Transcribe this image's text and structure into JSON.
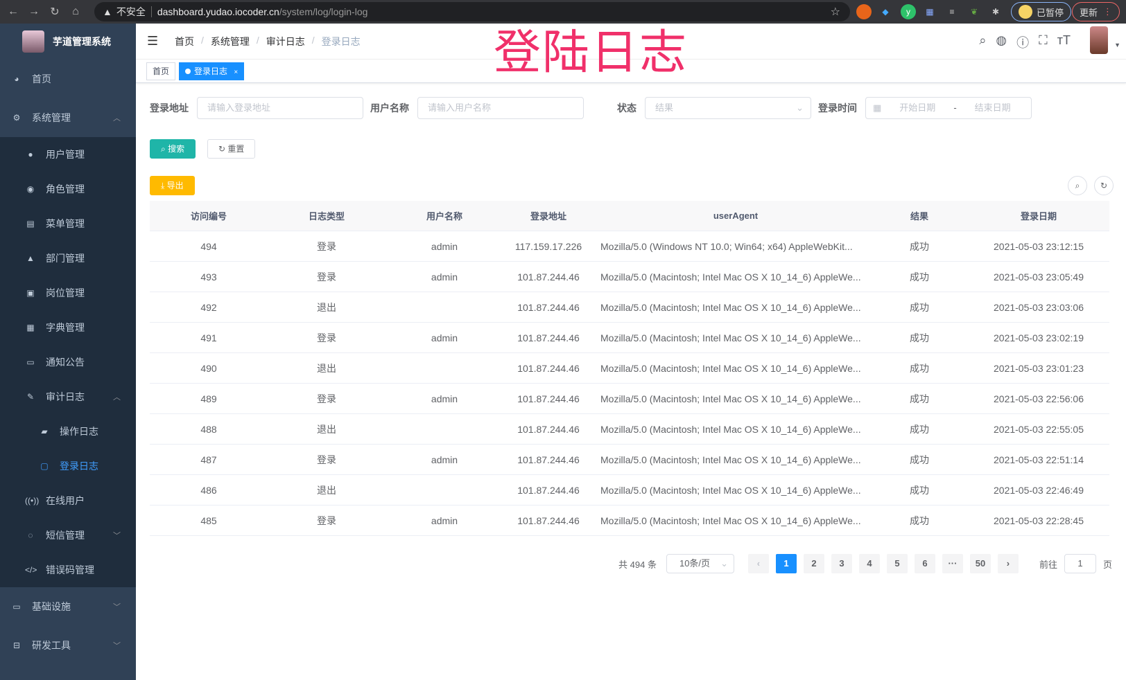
{
  "browser": {
    "warning": "不安全",
    "host": "dashboard.yudao.iocoder.cn",
    "path": "/system/log/login-log",
    "profile": "已暂停",
    "update": "更新"
  },
  "app": {
    "title": "芋道管理系统",
    "watermark": "登陆日志"
  },
  "breadcrumb": [
    "首页",
    "系统管理",
    "审计日志",
    "登录日志"
  ],
  "tabs": [
    {
      "label": "首页"
    },
    {
      "label": "登录日志",
      "close": "×"
    }
  ],
  "sidebar": {
    "home": "首页",
    "system": "系统管理",
    "system_items": [
      "用户管理",
      "角色管理",
      "菜单管理",
      "部门管理",
      "岗位管理",
      "字典管理",
      "通知公告"
    ],
    "audit": "审计日志",
    "audit_items": [
      "操作日志",
      "登录日志"
    ],
    "online": "在线用户",
    "sms": "短信管理",
    "errcode": "错误码管理",
    "infra": "基础设施",
    "devtools": "研发工具"
  },
  "filters": {
    "address_label": "登录地址",
    "address_placeholder": "请输入登录地址",
    "user_label": "用户名称",
    "user_placeholder": "请输入用户名称",
    "status_label": "状态",
    "status_placeholder": "结果",
    "time_label": "登录时间",
    "start_placeholder": "开始日期",
    "range_sep": "-",
    "end_placeholder": "结束日期"
  },
  "actions": {
    "search": "搜索",
    "reset": "重置",
    "export": "导出"
  },
  "table": {
    "columns": [
      "访问编号",
      "日志类型",
      "用户名称",
      "登录地址",
      "userAgent",
      "结果",
      "登录日期"
    ],
    "rows": [
      [
        "494",
        "登录",
        "admin",
        "117.159.17.226",
        "Mozilla/5.0 (Windows NT 10.0; Win64; x64) AppleWebKit...",
        "成功",
        "2021-05-03 23:12:15"
      ],
      [
        "493",
        "登录",
        "admin",
        "101.87.244.46",
        "Mozilla/5.0 (Macintosh; Intel Mac OS X 10_14_6) AppleWe...",
        "成功",
        "2021-05-03 23:05:49"
      ],
      [
        "492",
        "退出",
        "",
        "101.87.244.46",
        "Mozilla/5.0 (Macintosh; Intel Mac OS X 10_14_6) AppleWe...",
        "成功",
        "2021-05-03 23:03:06"
      ],
      [
        "491",
        "登录",
        "admin",
        "101.87.244.46",
        "Mozilla/5.0 (Macintosh; Intel Mac OS X 10_14_6) AppleWe...",
        "成功",
        "2021-05-03 23:02:19"
      ],
      [
        "490",
        "退出",
        "",
        "101.87.244.46",
        "Mozilla/5.0 (Macintosh; Intel Mac OS X 10_14_6) AppleWe...",
        "成功",
        "2021-05-03 23:01:23"
      ],
      [
        "489",
        "登录",
        "admin",
        "101.87.244.46",
        "Mozilla/5.0 (Macintosh; Intel Mac OS X 10_14_6) AppleWe...",
        "成功",
        "2021-05-03 22:56:06"
      ],
      [
        "488",
        "退出",
        "",
        "101.87.244.46",
        "Mozilla/5.0 (Macintosh; Intel Mac OS X 10_14_6) AppleWe...",
        "成功",
        "2021-05-03 22:55:05"
      ],
      [
        "487",
        "登录",
        "admin",
        "101.87.244.46",
        "Mozilla/5.0 (Macintosh; Intel Mac OS X 10_14_6) AppleWe...",
        "成功",
        "2021-05-03 22:51:14"
      ],
      [
        "486",
        "退出",
        "",
        "101.87.244.46",
        "Mozilla/5.0 (Macintosh; Intel Mac OS X 10_14_6) AppleWe...",
        "成功",
        "2021-05-03 22:46:49"
      ],
      [
        "485",
        "登录",
        "admin",
        "101.87.244.46",
        "Mozilla/5.0 (Macintosh; Intel Mac OS X 10_14_6) AppleWe...",
        "成功",
        "2021-05-03 22:28:45"
      ]
    ]
  },
  "pagination": {
    "total": "共 494 条",
    "page_size": "10条/页",
    "pages": [
      "1",
      "2",
      "3",
      "4",
      "5",
      "6",
      "···",
      "50"
    ],
    "current": "1",
    "goto_label": "前往",
    "goto_value": "1",
    "goto_suffix": "页"
  },
  "colors": {
    "sidebar": "#304156",
    "primary": "#1890ff",
    "search": "#13ce66",
    "export": "#ffba00",
    "watermark": "#f0306a"
  }
}
